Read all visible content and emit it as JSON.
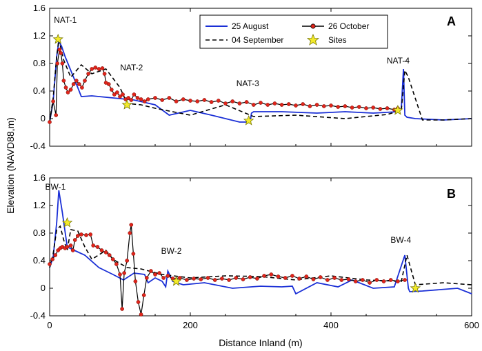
{
  "chart_data": {
    "type": "line",
    "ylabel": "Elevation (NAVD88,m)",
    "xlabel": "Distance Inland (m)",
    "xlim": [
      0,
      600
    ],
    "xticks": [
      0,
      200,
      400,
      600
    ],
    "legend": {
      "placement": "top-center",
      "entries": [
        {
          "label": "25 August",
          "style": "solid",
          "color": "#1a2fd6"
        },
        {
          "label": "26 October",
          "style": "line-marker",
          "color": "#000000",
          "marker": "#e0251b"
        },
        {
          "label": "04 September",
          "style": "dashed",
          "color": "#000000"
        },
        {
          "label": "Sites",
          "style": "star",
          "color": "#f3ea2a"
        }
      ]
    },
    "panels": [
      {
        "id": "A",
        "ylim": [
          -0.4,
          1.6
        ],
        "yticks": [
          -0.4,
          0,
          0.4,
          0.8,
          1.2,
          1.6
        ],
        "series": [
          {
            "name": "25 August",
            "x": [
              0,
              5,
              10,
              13,
              17,
              22,
              30,
              40,
              45,
              60,
              100,
              120,
              150,
              170,
              200,
              230,
              270,
              285,
              287,
              290,
              330,
              380,
              420,
              460,
              495,
              500,
              503,
              505,
              508,
              520,
              560,
              600
            ],
            "y": [
              -0.05,
              0.25,
              0.9,
              1.12,
              1.05,
              0.9,
              0.7,
              0.45,
              0.32,
              0.33,
              0.29,
              0.27,
              0.2,
              0.05,
              0.12,
              0.05,
              -0.05,
              -0.05,
              0.08,
              0.1,
              0.1,
              0.08,
              0.1,
              0.08,
              0.1,
              0.15,
              0.72,
              0.05,
              0.02,
              0.0,
              -0.02,
              0.0
            ]
          },
          {
            "name": "04 September",
            "x": [
              0,
              5,
              10,
              13,
              20,
              30,
              45,
              60,
              80,
              100,
              110,
              130,
              150,
              200,
              250,
              290,
              350,
              420,
              480,
              500,
              505,
              510,
              530,
              560,
              600
            ],
            "y": [
              -0.05,
              0.3,
              0.9,
              1.15,
              0.85,
              0.6,
              0.78,
              0.65,
              0.72,
              0.45,
              0.22,
              0.2,
              0.15,
              0.05,
              0.2,
              0.03,
              0.05,
              0.0,
              0.06,
              0.12,
              0.7,
              0.6,
              -0.02,
              -0.02,
              0.0
            ]
          },
          {
            "name": "26 October",
            "x": [],
            "y": [],
            "segments": [
              [
                0,
                -0.05
              ],
              [
                5,
                0.25
              ],
              [
                9,
                0.05
              ],
              [
                11,
                0.8
              ],
              [
                14,
                1.0
              ],
              [
                16,
                0.95
              ],
              [
                18,
                0.8
              ],
              [
                20,
                0.55
              ],
              [
                23,
                0.45
              ],
              [
                26,
                0.38
              ],
              [
                30,
                0.42
              ],
              [
                34,
                0.5
              ],
              [
                38,
                0.55
              ],
              [
                42,
                0.5
              ],
              [
                46,
                0.45
              ],
              [
                50,
                0.55
              ],
              [
                55,
                0.65
              ],
              [
                60,
                0.72
              ],
              [
                65,
                0.74
              ],
              [
                70,
                0.72
              ],
              [
                75,
                0.73
              ],
              [
                78,
                0.65
              ],
              [
                80,
                0.52
              ],
              [
                84,
                0.5
              ],
              [
                88,
                0.42
              ],
              [
                92,
                0.35
              ],
              [
                96,
                0.38
              ],
              [
                100,
                0.32
              ],
              [
                104,
                0.35
              ],
              [
                108,
                0.28
              ],
              [
                112,
                0.3
              ],
              [
                116,
                0.27
              ],
              [
                120,
                0.35
              ],
              [
                125,
                0.3
              ],
              [
                130,
                0.28
              ],
              [
                135,
                0.25
              ],
              [
                140,
                0.28
              ],
              [
                150,
                0.3
              ],
              [
                160,
                0.27
              ],
              [
                170,
                0.3
              ],
              [
                180,
                0.25
              ],
              [
                190,
                0.28
              ],
              [
                200,
                0.26
              ],
              [
                210,
                0.25
              ],
              [
                220,
                0.27
              ],
              [
                230,
                0.24
              ],
              [
                240,
                0.26
              ],
              [
                250,
                0.22
              ],
              [
                260,
                0.25
              ],
              [
                270,
                0.22
              ],
              [
                280,
                0.24
              ],
              [
                290,
                0.2
              ],
              [
                300,
                0.23
              ],
              [
                310,
                0.2
              ],
              [
                320,
                0.22
              ],
              [
                330,
                0.2
              ],
              [
                340,
                0.21
              ],
              [
                350,
                0.19
              ],
              [
                360,
                0.21
              ],
              [
                370,
                0.18
              ],
              [
                380,
                0.2
              ],
              [
                390,
                0.18
              ],
              [
                400,
                0.19
              ],
              [
                410,
                0.17
              ],
              [
                420,
                0.18
              ],
              [
                430,
                0.16
              ],
              [
                440,
                0.17
              ],
              [
                450,
                0.15
              ],
              [
                460,
                0.16
              ],
              [
                470,
                0.14
              ],
              [
                480,
                0.15
              ],
              [
                490,
                0.13
              ],
              [
                495,
                0.15
              ]
            ]
          }
        ],
        "sites": [
          {
            "label": "NAT-1",
            "x": 12,
            "y": 1.15
          },
          {
            "label": "NAT-2",
            "x": 110,
            "y": 0.2
          },
          {
            "label": "NAT-3",
            "x": 283,
            "y": -0.03
          },
          {
            "label": "NAT-4",
            "x": 495,
            "y": 0.12
          }
        ]
      },
      {
        "id": "B",
        "ylim": [
          -0.4,
          1.6
        ],
        "yticks": [
          -0.4,
          0,
          0.4,
          0.8,
          1.2,
          1.6
        ],
        "series": [
          {
            "name": "25 August",
            "x": [
              0,
              5,
              10,
              13,
              18,
              25,
              35,
              50,
              70,
              90,
              105,
              120,
              135,
              140,
              150,
              160,
              165,
              168,
              175,
              190,
              220,
              260,
              300,
              330,
              345,
              350,
              380,
              410,
              430,
              460,
              490,
              505,
              510,
              512,
              530,
              580,
              600
            ],
            "y": [
              0.3,
              0.45,
              0.95,
              1.42,
              1.1,
              0.6,
              0.55,
              0.48,
              0.3,
              0.2,
              0.12,
              0.22,
              0.2,
              0.08,
              0.15,
              0.1,
              0.02,
              0.25,
              0.1,
              0.05,
              0.08,
              0.0,
              0.03,
              0.02,
              0.03,
              -0.08,
              0.08,
              0.02,
              0.12,
              0.0,
              0.02,
              0.48,
              0.0,
              -0.05,
              -0.04,
              0.0,
              -0.08
            ]
          },
          {
            "name": "04 September",
            "x": [
              0,
              5,
              10,
              15,
              20,
              25,
              30,
              40,
              50,
              60,
              80,
              90,
              110,
              130,
              160,
              200,
              250,
              300,
              350,
              400,
              450,
              500,
              508,
              520,
              560,
              600
            ],
            "y": [
              0.3,
              0.5,
              0.85,
              0.9,
              0.7,
              0.55,
              0.85,
              0.83,
              0.6,
              0.42,
              0.55,
              0.42,
              0.3,
              0.28,
              0.2,
              0.15,
              0.18,
              0.17,
              0.12,
              0.18,
              0.12,
              0.1,
              0.48,
              0.05,
              0.08,
              0.05
            ]
          },
          {
            "name": "26 October",
            "x": [],
            "y": [],
            "segments": [
              [
                0,
                0.35
              ],
              [
                4,
                0.42
              ],
              [
                8,
                0.48
              ],
              [
                12,
                0.55
              ],
              [
                15,
                0.58
              ],
              [
                18,
                0.6
              ],
              [
                22,
                0.58
              ],
              [
                25,
                0.6
              ],
              [
                30,
                0.62
              ],
              [
                33,
                0.55
              ],
              [
                36,
                0.7
              ],
              [
                40,
                0.76
              ],
              [
                45,
                0.78
              ],
              [
                52,
                0.77
              ],
              [
                58,
                0.78
              ],
              [
                62,
                0.62
              ],
              [
                68,
                0.6
              ],
              [
                74,
                0.55
              ],
              [
                80,
                0.52
              ],
              [
                85,
                0.48
              ],
              [
                90,
                0.42
              ],
              [
                95,
                0.35
              ],
              [
                100,
                0.2
              ],
              [
                103,
                -0.3
              ],
              [
                106,
                0.22
              ],
              [
                110,
                0.4
              ],
              [
                114,
                0.8
              ],
              [
                116,
                0.92
              ],
              [
                119,
                0.5
              ],
              [
                122,
                0.1
              ],
              [
                126,
                -0.2
              ],
              [
                130,
                -0.38
              ],
              [
                134,
                -0.1
              ],
              [
                138,
                0.15
              ],
              [
                144,
                0.25
              ],
              [
                150,
                0.2
              ],
              [
                156,
                0.22
              ],
              [
                162,
                0.15
              ],
              [
                168,
                0.18
              ],
              [
                175,
                0.14
              ],
              [
                185,
                0.15
              ],
              [
                195,
                0.12
              ],
              [
                205,
                0.14
              ],
              [
                215,
                0.13
              ],
              [
                225,
                0.15
              ],
              [
                235,
                0.12
              ],
              [
                245,
                0.14
              ],
              [
                255,
                0.12
              ],
              [
                265,
                0.15
              ],
              [
                275,
                0.13
              ],
              [
                285,
                0.16
              ],
              [
                295,
                0.14
              ],
              [
                305,
                0.18
              ],
              [
                315,
                0.2
              ],
              [
                325,
                0.17
              ],
              [
                335,
                0.15
              ],
              [
                345,
                0.18
              ],
              [
                355,
                0.14
              ],
              [
                365,
                0.17
              ],
              [
                375,
                0.13
              ],
              [
                385,
                0.16
              ],
              [
                395,
                0.12
              ],
              [
                405,
                0.15
              ],
              [
                415,
                0.12
              ],
              [
                425,
                0.13
              ],
              [
                435,
                0.1
              ],
              [
                445,
                0.12
              ],
              [
                455,
                0.08
              ],
              [
                465,
                0.12
              ],
              [
                475,
                0.1
              ],
              [
                485,
                0.12
              ],
              [
                495,
                0.1
              ],
              [
                505,
                0.12
              ]
            ]
          }
        ],
        "sites": [
          {
            "label": "BW-1",
            "x": 25,
            "y": 0.95
          },
          {
            "label": "BW-2",
            "x": 180,
            "y": 0.1
          },
          {
            "label": "BW-4",
            "x": 520,
            "y": 0.0
          }
        ]
      }
    ]
  }
}
